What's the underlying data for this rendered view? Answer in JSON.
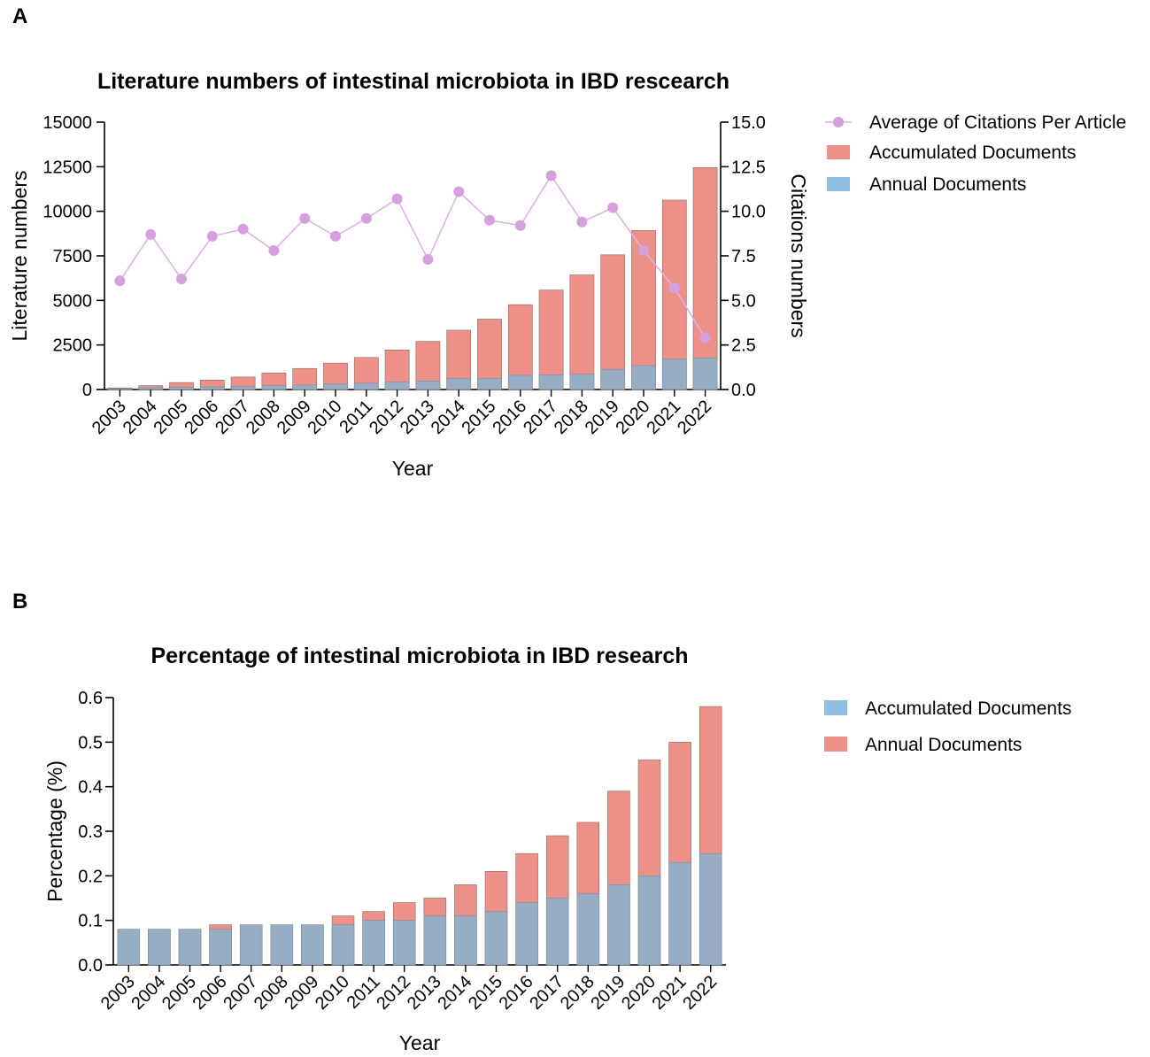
{
  "colors": {
    "accumulated_a": "#ed9087",
    "annual_a": "#96adc4",
    "citation_line": "#dcb4e2",
    "citation_marker": "#d79fdf",
    "legend_blue": "#8fbfe0",
    "legend_red": "#ed9087"
  },
  "chart_data": [
    {
      "panel": "A",
      "type": "bar",
      "title": "Literature numbers of intestinal microbiota in IBD rescearch",
      "xlabel": "Year",
      "ylabel": "Literature numbers",
      "y2label": "Citations numbers",
      "ylim": [
        0,
        15000
      ],
      "y2lim": [
        0,
        15.0
      ],
      "yticks": [
        "0",
        "2500",
        "5000",
        "7500",
        "10000",
        "12500",
        "15000"
      ],
      "y2ticks": [
        "0.0",
        "2.5",
        "5.0",
        "7.5",
        "10.0",
        "12.5",
        "15.0"
      ],
      "categories": [
        "2003",
        "2004",
        "2005",
        "2006",
        "2007",
        "2008",
        "2009",
        "2010",
        "2011",
        "2012",
        "2013",
        "2014",
        "2015",
        "2016",
        "2017",
        "2018",
        "2019",
        "2020",
        "2021",
        "2022"
      ],
      "series": [
        {
          "name": "Average of Citations Per Article",
          "kind": "line",
          "axis": "right",
          "values": [
            6.1,
            8.7,
            6.2,
            8.6,
            9.0,
            7.8,
            9.6,
            8.6,
            9.6,
            10.7,
            7.3,
            11.1,
            9.5,
            9.2,
            12.0,
            9.4,
            10.2,
            7.8,
            5.7,
            2.9
          ]
        },
        {
          "name": "Accumulated Documents",
          "kind": "bar",
          "axis": "left",
          "values": [
            90,
            220,
            390,
            530,
            700,
            930,
            1180,
            1480,
            1800,
            2220,
            2700,
            3330,
            3950,
            4760,
            5580,
            6430,
            7560,
            8920,
            10630,
            12450
          ]
        },
        {
          "name": "Annual Documents",
          "kind": "bar",
          "axis": "left",
          "values": [
            60,
            100,
            130,
            150,
            170,
            220,
            250,
            300,
            350,
            420,
            480,
            620,
            620,
            800,
            820,
            860,
            1130,
            1340,
            1710,
            1780
          ]
        }
      ],
      "legend": [
        "Average of Citations Per Article",
        "Accumulated Documents",
        "Annual Documents"
      ],
      "legend_position": "right"
    },
    {
      "panel": "B",
      "type": "bar",
      "title": "Percentage of intestinal microbiota in IBD research",
      "xlabel": "Year",
      "ylabel": "Percentage (%)",
      "ylim": [
        0,
        0.6
      ],
      "yticks": [
        "0.0",
        "0.1",
        "0.2",
        "0.3",
        "0.4",
        "0.5",
        "0.6"
      ],
      "categories": [
        "2003",
        "2004",
        "2005",
        "2006",
        "2007",
        "2008",
        "2009",
        "2010",
        "2011",
        "2012",
        "2013",
        "2014",
        "2015",
        "2016",
        "2017",
        "2018",
        "2019",
        "2020",
        "2021",
        "2022"
      ],
      "series": [
        {
          "name": "Accumulated Documents",
          "values": [
            0.08,
            0.08,
            0.08,
            0.08,
            0.09,
            0.09,
            0.09,
            0.09,
            0.1,
            0.1,
            0.11,
            0.11,
            0.12,
            0.14,
            0.15,
            0.16,
            0.18,
            0.2,
            0.23,
            0.25
          ]
        },
        {
          "name": "Annual Documents",
          "values": [
            0.08,
            0.08,
            0.08,
            0.09,
            0.09,
            0.09,
            0.09,
            0.11,
            0.12,
            0.14,
            0.15,
            0.18,
            0.21,
            0.25,
            0.29,
            0.32,
            0.39,
            0.46,
            0.5,
            0.58
          ]
        }
      ],
      "legend": [
        "Accumulated Documents",
        "Annual Documents"
      ],
      "legend_position": "right"
    }
  ]
}
